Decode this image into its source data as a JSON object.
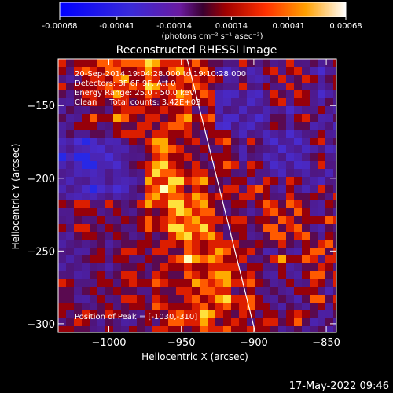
{
  "colorbar": {
    "tick_labels": [
      "-0.00068",
      "-0.00041",
      "-0.00014",
      "0.00014",
      "0.00041",
      "0.00068"
    ],
    "range": [
      -0.00068,
      0.00068
    ],
    "unit_label": "(photons cm⁻² s⁻¹ asec⁻²)"
  },
  "plot": {
    "title": "Reconstructed RHESSI Image",
    "info_lines": [
      "20-Sep-2014 19:04:28.000 to 19:10:28.000",
      "Detectors: 3F 6F 9F, Att 0",
      "Energy Range: 25.0 - 50.0 keV",
      "Clean     Total counts: 3.42E+03"
    ],
    "peak_label": "Position of Peak = [-1030,-310]",
    "timestamp": "17-May-2022 09:46"
  },
  "chart_data": {
    "type": "heatmap",
    "title": "Reconstructed RHESSI Image",
    "xlabel": "Heliocentric X (arcsec)",
    "ylabel": "Heliocentric Y (arcsec)",
    "xlim": [
      -1035,
      -843
    ],
    "ylim": [
      -306,
      -118
    ],
    "x_ticks": [
      -1000,
      -950,
      -900,
      -850
    ],
    "x_tick_labels": [
      "−1000",
      "−950",
      "−900",
      "−850"
    ],
    "y_ticks": [
      -150,
      -200,
      -250,
      -300
    ],
    "y_tick_labels": [
      "−150",
      "−200",
      "−250",
      "−300"
    ],
    "colormap": "hot-with-blue-negative",
    "limb_line": {
      "from": [
        -946,
        -118
      ],
      "to": [
        -899,
        -306
      ],
      "color": "#ffffff"
    },
    "grid": false,
    "legend": "colorbar top"
  }
}
